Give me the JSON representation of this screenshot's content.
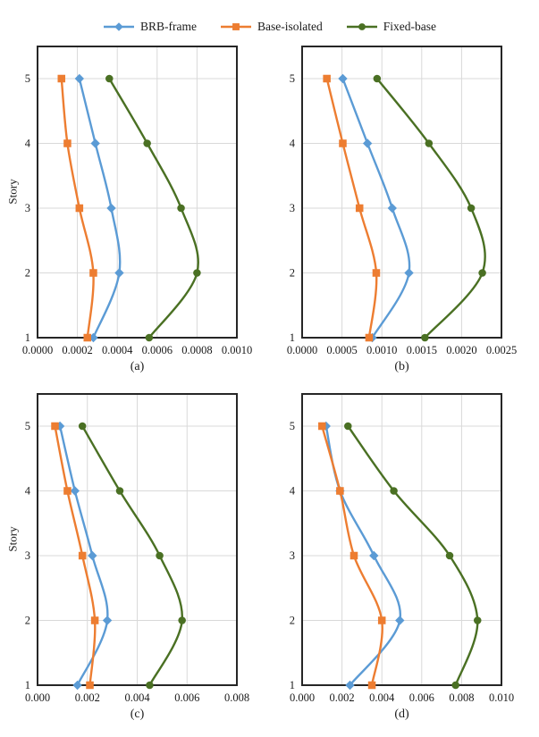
{
  "legend": {
    "items": [
      {
        "label": "BRB-frame",
        "marker": "diamond",
        "color": "#5B9BD5"
      },
      {
        "label": "Base-isolated",
        "marker": "square",
        "color": "#ED7D31"
      },
      {
        "label": "Fixed-base",
        "marker": "circle",
        "color": "#4A7023"
      }
    ]
  },
  "style": {
    "grid_color": "#d9d9d9",
    "border_color": "#262626",
    "background": "#ffffff"
  },
  "chart_data": [
    {
      "type": "line",
      "caption": "(a)",
      "xlabel": "",
      "ylabel": "Story",
      "ylim": [
        1,
        5.5
      ],
      "grid": true,
      "legend_position": "top-center-shared",
      "stories": [
        1,
        2,
        3,
        4,
        5
      ],
      "ytick_labels": [
        "1",
        "2",
        "3",
        "4",
        "5"
      ],
      "xlim": [
        0,
        0.001
      ],
      "xticks": [
        0,
        0.0002,
        0.0004,
        0.0006,
        0.0008,
        0.001
      ],
      "xtick_labels": [
        "0.0000",
        "0.0002",
        "0.0004",
        "0.0006",
        "0.0008",
        "0.0010"
      ],
      "series": [
        {
          "name": "BRB-frame",
          "marker": "diamond",
          "color": "#5B9BD5",
          "values": [
            0.00028,
            0.00041,
            0.00037,
            0.00029,
            0.00021
          ]
        },
        {
          "name": "Base-isolated",
          "marker": "square",
          "color": "#ED7D31",
          "values": [
            0.00025,
            0.00028,
            0.00021,
            0.00015,
            0.00012
          ]
        },
        {
          "name": "Fixed-base",
          "marker": "circle",
          "color": "#4A7023",
          "values": [
            0.00056,
            0.0008,
            0.00072,
            0.00055,
            0.00036
          ]
        }
      ]
    },
    {
      "type": "line",
      "caption": "(b)",
      "xlabel": "",
      "ylabel": "",
      "ylim": [
        1,
        5.5
      ],
      "grid": true,
      "legend_position": "top-center-shared",
      "stories": [
        1,
        2,
        3,
        4,
        5
      ],
      "ytick_labels": [
        "1",
        "2",
        "3",
        "4",
        "5"
      ],
      "xlim": [
        0,
        0.0025
      ],
      "xticks": [
        0,
        0.0005,
        0.001,
        0.0015,
        0.002,
        0.0025
      ],
      "xtick_labels": [
        "0.0000",
        "0.0005",
        "0.0010",
        "0.0015",
        "0.0020",
        "0.0025"
      ],
      "series": [
        {
          "name": "BRB-frame",
          "marker": "diamond",
          "color": "#5B9BD5",
          "values": [
            0.00088,
            0.00134,
            0.00113,
            0.00082,
            0.00051
          ]
        },
        {
          "name": "Base-isolated",
          "marker": "square",
          "color": "#ED7D31",
          "values": [
            0.00084,
            0.00093,
            0.00072,
            0.00051,
            0.00031
          ]
        },
        {
          "name": "Fixed-base",
          "marker": "circle",
          "color": "#4A7023",
          "values": [
            0.00154,
            0.00226,
            0.00212,
            0.00159,
            0.00094
          ]
        }
      ]
    },
    {
      "type": "line",
      "caption": "(c)",
      "xlabel": "",
      "ylabel": "Story",
      "ylim": [
        1,
        5.5
      ],
      "grid": true,
      "legend_position": "top-center-shared",
      "stories": [
        1,
        2,
        3,
        4,
        5
      ],
      "ytick_labels": [
        "1",
        "2",
        "3",
        "4",
        "5"
      ],
      "xlim": [
        0,
        0.008
      ],
      "xticks": [
        0,
        0.002,
        0.004,
        0.006,
        0.008
      ],
      "xtick_labels": [
        "0.000",
        "0.002",
        "0.004",
        "0.006",
        "0.008"
      ],
      "series": [
        {
          "name": "BRB-frame",
          "marker": "diamond",
          "color": "#5B9BD5",
          "values": [
            0.0016,
            0.0028,
            0.0022,
            0.0015,
            0.0009
          ]
        },
        {
          "name": "Base-isolated",
          "marker": "square",
          "color": "#ED7D31",
          "values": [
            0.0021,
            0.0023,
            0.0018,
            0.0012,
            0.0007
          ]
        },
        {
          "name": "Fixed-base",
          "marker": "circle",
          "color": "#4A7023",
          "values": [
            0.0045,
            0.0058,
            0.0049,
            0.0033,
            0.0018
          ]
        }
      ]
    },
    {
      "type": "line",
      "caption": "(d)",
      "xlabel": "",
      "ylabel": "",
      "ylim": [
        1,
        5.5
      ],
      "grid": true,
      "legend_position": "top-center-shared",
      "stories": [
        1,
        2,
        3,
        4,
        5
      ],
      "ytick_labels": [
        "1",
        "2",
        "3",
        "4",
        "5"
      ],
      "xlim": [
        0,
        0.01
      ],
      "xticks": [
        0,
        0.002,
        0.004,
        0.006,
        0.008,
        0.01
      ],
      "xtick_labels": [
        "0.000",
        "0.002",
        "0.004",
        "0.006",
        "0.008",
        "0.010"
      ],
      "series": [
        {
          "name": "BRB-frame",
          "marker": "diamond",
          "color": "#5B9BD5",
          "values": [
            0.0024,
            0.0049,
            0.0036,
            0.0019,
            0.0012
          ]
        },
        {
          "name": "Base-isolated",
          "marker": "square",
          "color": "#ED7D31",
          "values": [
            0.0035,
            0.004,
            0.0026,
            0.0019,
            0.001
          ]
        },
        {
          "name": "Fixed-base",
          "marker": "circle",
          "color": "#4A7023",
          "values": [
            0.0077,
            0.0088,
            0.0074,
            0.0046,
            0.0023
          ]
        }
      ]
    }
  ]
}
